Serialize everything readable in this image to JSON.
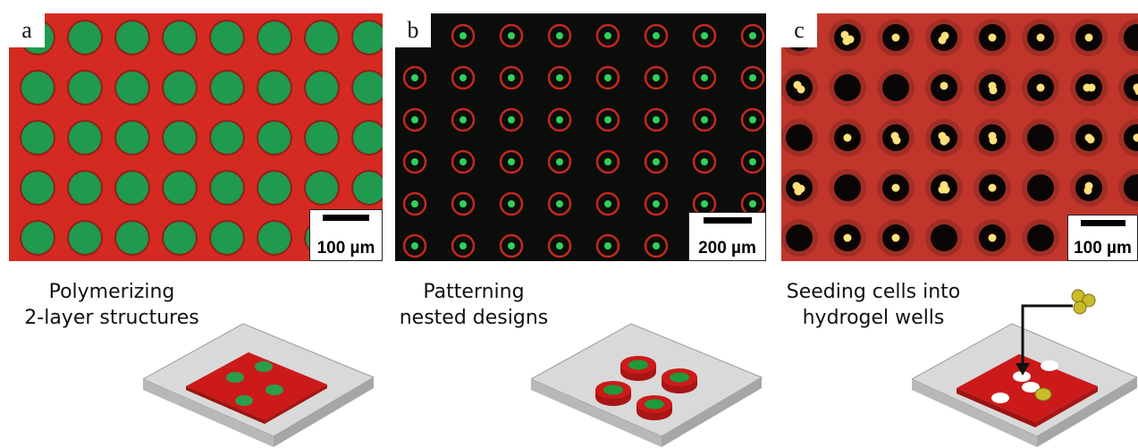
{
  "figure": {
    "panels": [
      {
        "letter": "a",
        "scale_label": "100 µm",
        "caption": [
          "Polymerizing",
          "2-layer structures"
        ],
        "colors": {
          "background": "#d42a22",
          "dot": "#1f9a4e",
          "rim": "#5a1812"
        }
      },
      {
        "letter": "b",
        "scale_label": "200 µm",
        "caption": [
          "Patterning",
          "nested designs"
        ],
        "colors": {
          "background": "#0b0d0b",
          "ring": "#c4281f",
          "dot": "#2fd25a"
        }
      },
      {
        "letter": "c",
        "scale_label": "100 µm",
        "caption": [
          "Seeding cells into",
          "hydrogel wells"
        ],
        "colors": {
          "background": "#c1352b",
          "well": "#0a0505",
          "cell": "#ffe07a"
        }
      }
    ],
    "schematic_colors": {
      "substrate": "#d9d9d9",
      "hydrogel": "#cc1a1a",
      "inner_layer": "#1f9a3a",
      "cell": "#c9bb2a"
    }
  }
}
